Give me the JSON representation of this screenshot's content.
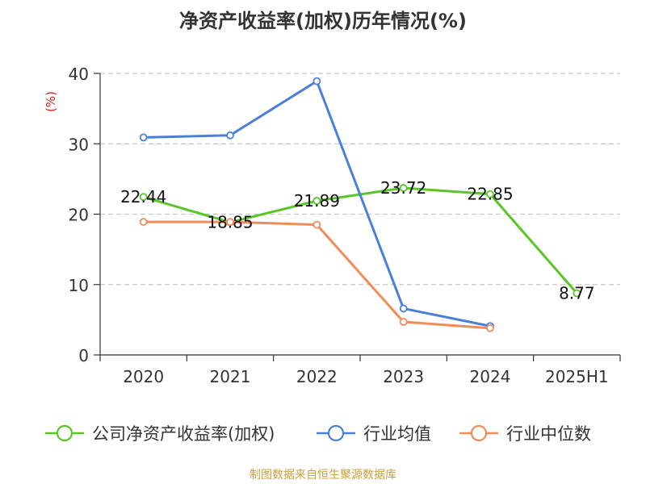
{
  "chart_data": {
    "type": "line",
    "title": "净资产收益率(加权)历年情况(%)",
    "ylabel": "(%)",
    "xlabel": "",
    "categories": [
      "2020",
      "2021",
      "2022",
      "2023",
      "2024",
      "2025H1"
    ],
    "ylim": [
      0,
      40
    ],
    "yticks": [
      0,
      10,
      20,
      30,
      40
    ],
    "grid": true,
    "legend_position": "bottom",
    "series": [
      {
        "name": "公司净资产收益率(加权)",
        "color": "#5ac528",
        "values": [
          22.44,
          18.85,
          21.89,
          23.72,
          22.85,
          8.77
        ],
        "labels": [
          "22.44",
          "18.85",
          "21.89",
          "23.72",
          "22.85",
          "8.77"
        ]
      },
      {
        "name": "行业均值",
        "color": "#4a7fd8",
        "values": [
          30.9,
          31.2,
          38.9,
          6.6,
          4.1,
          null
        ]
      },
      {
        "name": "行业中位数",
        "color": "#f08c5a",
        "values": [
          18.9,
          18.9,
          18.5,
          4.7,
          3.8,
          null
        ]
      }
    ]
  },
  "source": "制图数据来自恒生聚源数据库"
}
